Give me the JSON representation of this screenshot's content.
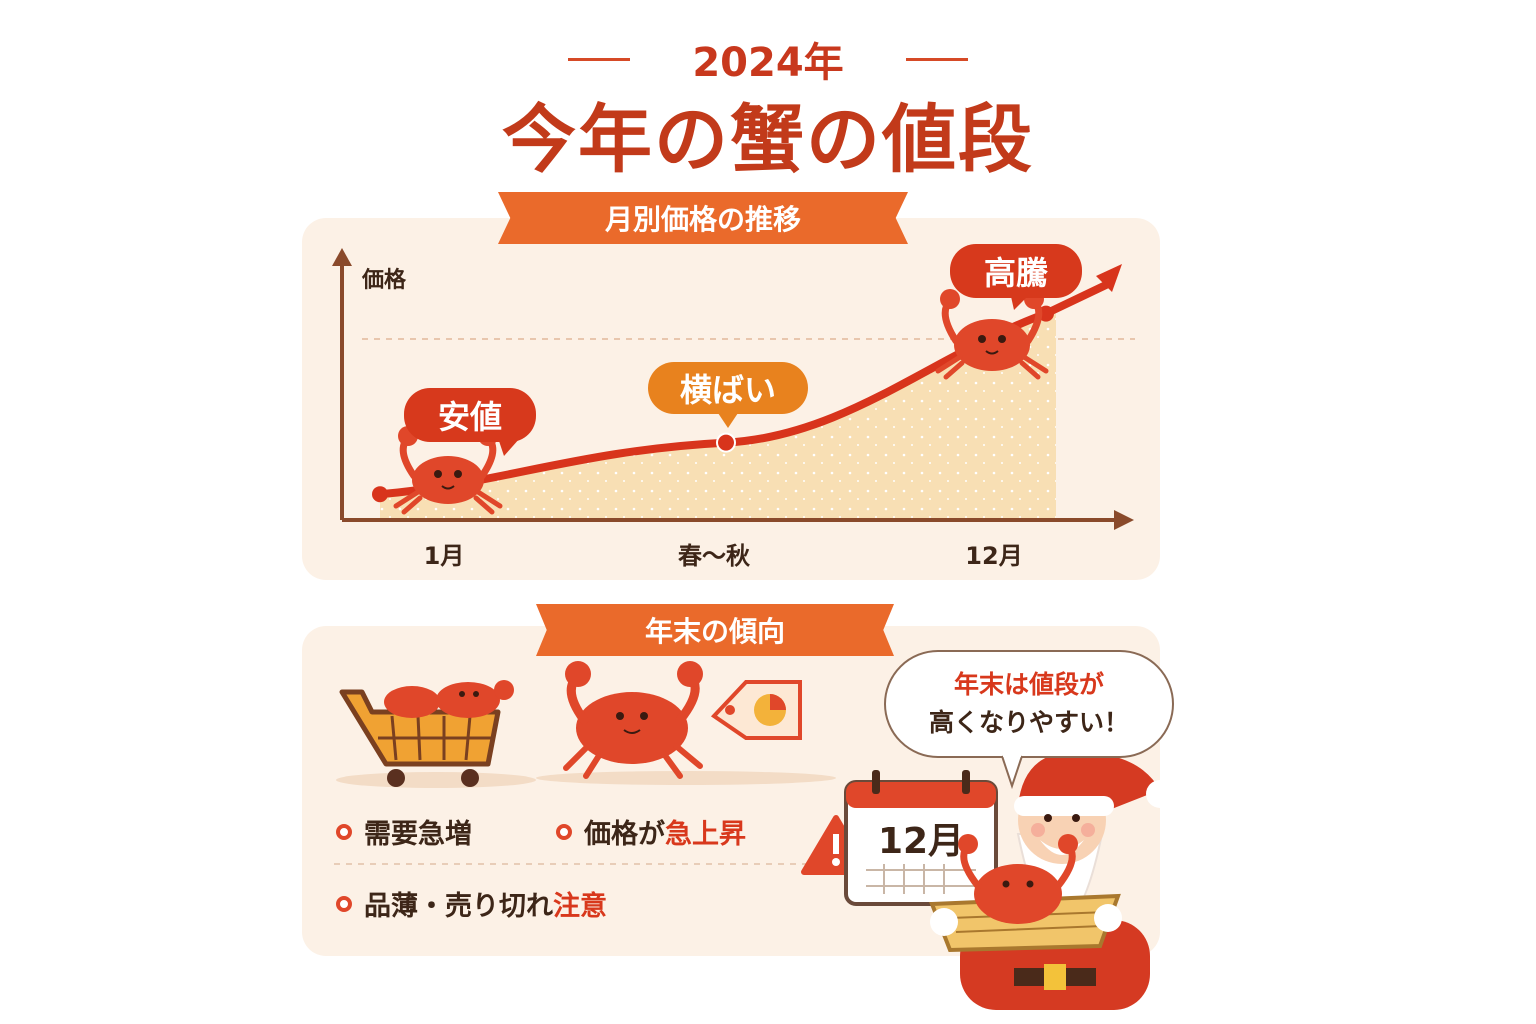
{
  "header": {
    "year": "2024年",
    "title": "今年の蟹の値段"
  },
  "chart_section": {
    "banner": "月別価格の推移"
  },
  "chart_data": {
    "type": "line",
    "title": "月別価格の推移",
    "xlabel": "",
    "ylabel": "価格",
    "categories": [
      "1月",
      "春〜秋",
      "12月"
    ],
    "series": [
      {
        "name": "蟹の値段",
        "values": [
          1,
          3,
          8
        ]
      }
    ],
    "ylim": [
      0,
      10
    ],
    "annotations": [
      "安値",
      "横ばい",
      "高騰"
    ]
  },
  "trend_section": {
    "banner": "年末の傾向",
    "items": {
      "demand": "需要急増",
      "price_prefix": "価格が",
      "price_emph": "急上昇",
      "stock_prefix": "品薄・売り切れ",
      "stock_emph": "注意"
    },
    "calendar": "12月",
    "speech_line1": "年末は値段が",
    "speech_line2": "高くなりやすい！"
  },
  "colors": {
    "accent": "#c23a1a",
    "orange": "#ea6a2b",
    "panel": "#fcf1e6",
    "crab": "#e0472a"
  }
}
